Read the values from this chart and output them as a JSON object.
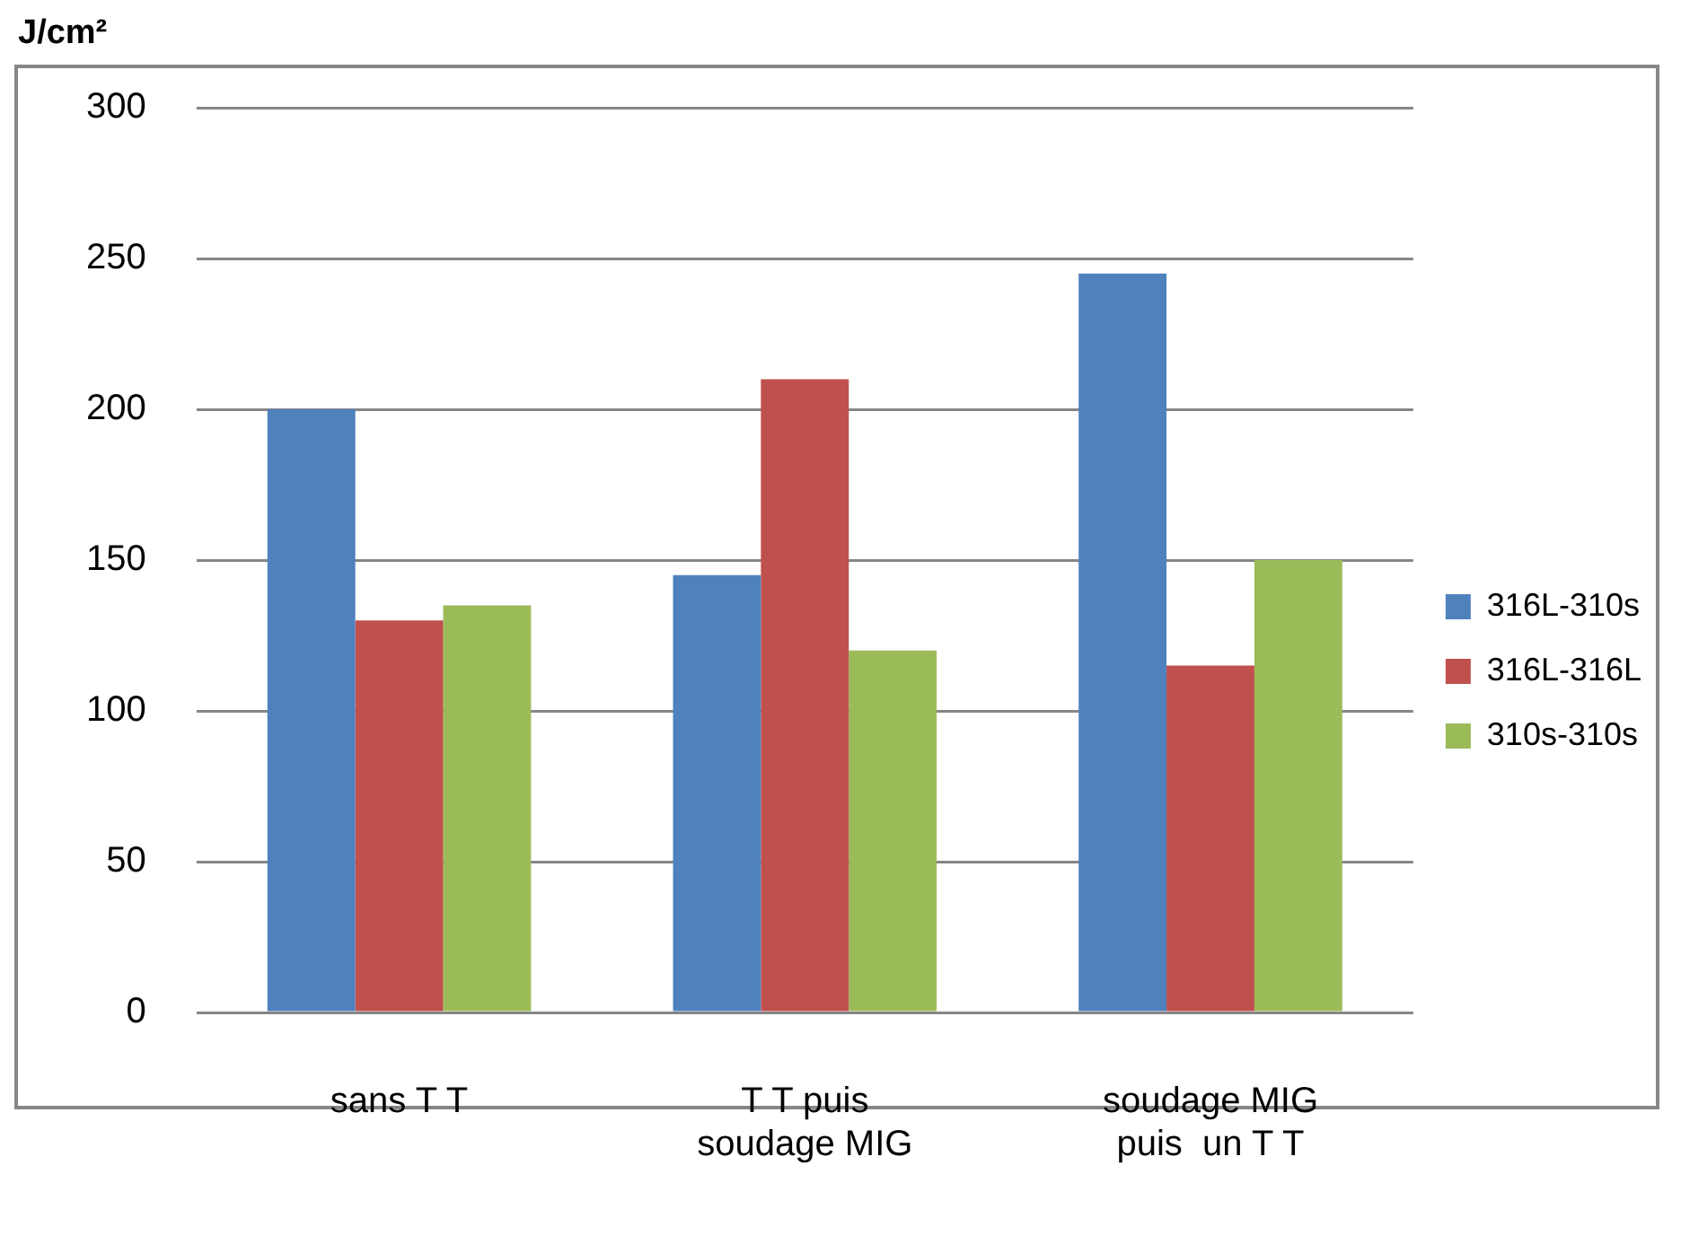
{
  "chart_data": {
    "type": "bar",
    "ylabel": "J/cm²",
    "categories": [
      "sans T T",
      "T T puis soudage MIG",
      "soudage MIG puis  un T T"
    ],
    "series": [
      {
        "name": "316L-310s",
        "color": "#4f81bd",
        "values": [
          200,
          145,
          245
        ]
      },
      {
        "name": "316L-316L",
        "color": "#c0504d",
        "values": [
          130,
          210,
          115
        ]
      },
      {
        "name": "310s-310s",
        "color": "#9bbb59",
        "values": [
          135,
          120,
          150
        ]
      }
    ],
    "ylim": [
      0,
      300
    ],
    "yticks": [
      0,
      50,
      100,
      150,
      200,
      250,
      300
    ],
    "grid": "y",
    "legend": "right"
  }
}
